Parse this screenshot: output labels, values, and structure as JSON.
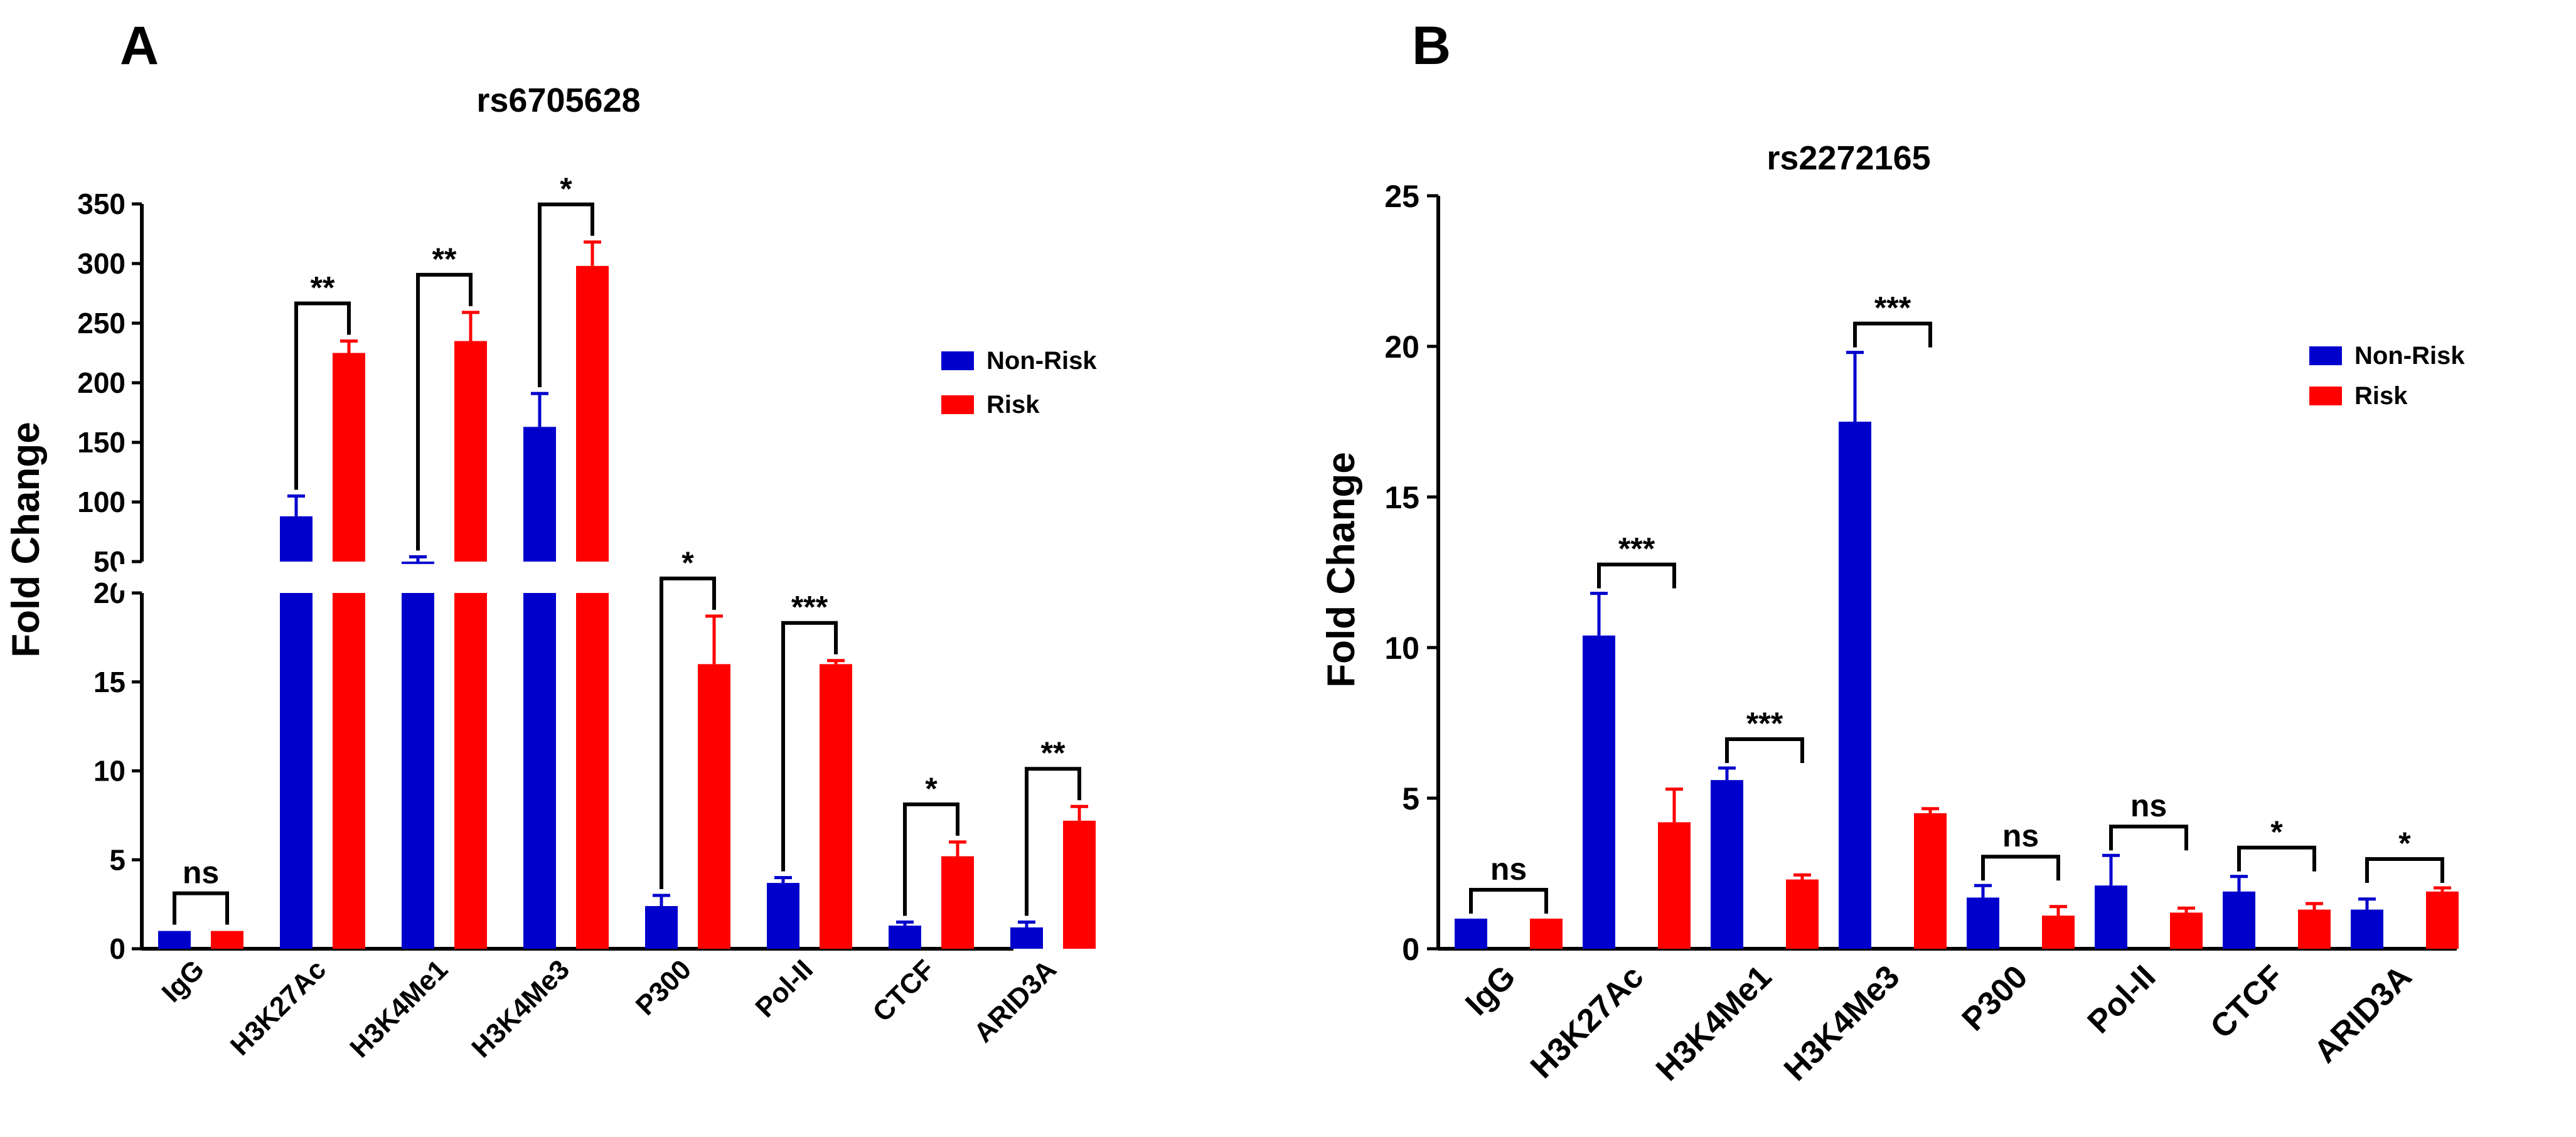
{
  "colors": {
    "non_risk": "#0000CC",
    "risk": "#FF0000",
    "axis": "#000000"
  },
  "chart_data": [
    {
      "type": "bar",
      "panel_label": "A",
      "title": "rs6705628",
      "ylabel": "Fold Change",
      "xlabel": "",
      "categories": [
        "IgG",
        "H3K27Ac",
        "H3K4Me1",
        "H3K4Me3",
        "P300",
        "Pol-II",
        "CTCF",
        "ARID3A"
      ],
      "series": [
        {
          "name": "Non-Risk",
          "color": "#0000CC",
          "values": [
            1,
            88,
            48,
            163,
            2.4,
            3.7,
            1.3,
            1.2
          ],
          "errors": [
            0,
            17,
            6,
            28,
            0.6,
            0.3,
            0.2,
            0.3
          ]
        },
        {
          "name": "Risk",
          "color": "#FF0000",
          "values": [
            1,
            225,
            235,
            298,
            16,
            16,
            5.2,
            7.2
          ],
          "errors": [
            0,
            10,
            24,
            20,
            2.7,
            0.2,
            0.8,
            0.8
          ]
        }
      ],
      "y_broken_axis": {
        "lower": {
          "ylim": [
            0,
            20
          ],
          "ticks": [
            "0",
            "5",
            "10",
            "15",
            "20"
          ]
        },
        "upper": {
          "ylim": [
            50,
            350
          ],
          "ticks": [
            "50",
            "100",
            "150",
            "200",
            "250",
            "300",
            "350"
          ]
        }
      },
      "significance": [
        "ns",
        "**",
        "**",
        "*",
        "*",
        "***",
        "*",
        "**"
      ],
      "legend": {
        "position": "right",
        "entries": [
          "Non-Risk",
          "Risk"
        ]
      }
    },
    {
      "type": "bar",
      "panel_label": "B",
      "title": "rs2272165",
      "ylabel": "Fold Change",
      "xlabel": "",
      "categories": [
        "IgG",
        "H3K27Ac",
        "H3K4Me1",
        "H3K4Me3",
        "P300",
        "Pol-II",
        "CTCF",
        "ARID3A"
      ],
      "series": [
        {
          "name": "Non-Risk",
          "color": "#0000CC",
          "values": [
            1,
            10.4,
            5.6,
            17.5,
            1.7,
            2.1,
            1.9,
            1.3
          ],
          "errors": [
            0,
            1.4,
            0.4,
            2.3,
            0.4,
            1.0,
            0.5,
            0.35
          ]
        },
        {
          "name": "Risk",
          "color": "#FF0000",
          "values": [
            1,
            4.2,
            2.3,
            4.5,
            1.1,
            1.2,
            1.3,
            1.9
          ],
          "errors": [
            0,
            1.1,
            0.15,
            0.15,
            0.3,
            0.15,
            0.2,
            0.12
          ]
        }
      ],
      "ylim": [
        0,
        25
      ],
      "yticks": [
        "0",
        "5",
        "10",
        "15",
        "20",
        "25"
      ],
      "significance": [
        "ns",
        "***",
        "***",
        "***",
        "ns",
        "ns",
        "*",
        "*"
      ],
      "legend": {
        "position": "right",
        "entries": [
          "Non-Risk",
          "Risk"
        ]
      }
    }
  ]
}
